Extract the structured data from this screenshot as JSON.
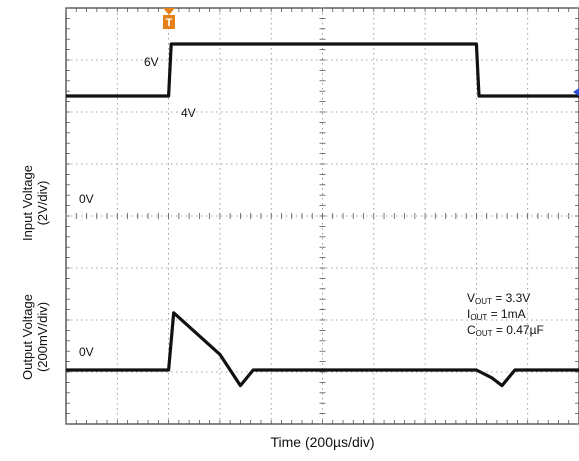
{
  "chart_data": {
    "type": "line",
    "title": "",
    "xlabel": "Time (200µs/div)",
    "ylabel_top": [
      "Input Voltage",
      "(2V/div)"
    ],
    "ylabel_bottom": [
      "Output Voltage",
      "(200mV/div)"
    ],
    "grid": true,
    "divisions": {
      "x": 10,
      "y": 8
    },
    "trigger_marker": "T",
    "series": [
      {
        "x_us": [
          0,
          200,
          400,
          410,
          600,
          800,
          1000,
          1200,
          1600,
          1610,
          1800,
          2000
        ],
        "values_V": [
          4,
          4,
          4,
          6,
          6,
          6,
          6,
          6,
          6,
          4,
          4,
          4
        ],
        "level_labels": {
          "6V": "6V",
          "4V": "4V",
          "0V": "0V"
        }
      },
      {
        "x_us": [
          0,
          200,
          400,
          420,
          600,
          680,
          730,
          800,
          1000,
          1200,
          1600,
          1660,
          1700,
          1750,
          2000
        ],
        "values_mV": [
          0,
          0,
          0,
          220,
          60,
          -60,
          0,
          0,
          0,
          0,
          0,
          -30,
          -60,
          0,
          0
        ],
        "level_labels": {
          "0V": "0V"
        }
      }
    ],
    "annotation": {
      "line1": "V",
      "line1_sub": "OUT",
      "line1_rest": " = 3.3V",
      "line2": "I",
      "line2_sub": "OUT",
      "line2_rest": " = 1mA",
      "line3": "C",
      "line3_sub": "OUT",
      "line3_rest": " = 0.47µF"
    },
    "colors": {
      "trace": "#111111",
      "grid": "#888888",
      "trigger": "#e8801a",
      "background": "#ffffff"
    }
  }
}
